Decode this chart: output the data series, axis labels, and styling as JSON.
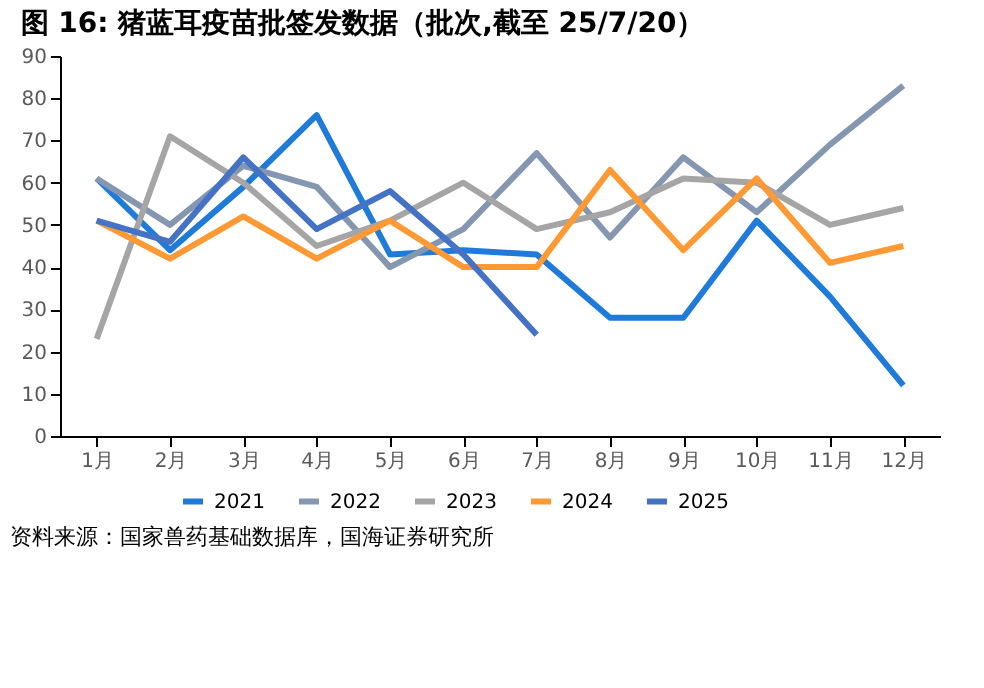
{
  "chart_data": {
    "type": "line",
    "title": "图 16: 猪蓝耳疫苗批签发数据（批次,截至 25/7/20）",
    "categories": [
      "1月",
      "2月",
      "3月",
      "4月",
      "5月",
      "6月",
      "7月",
      "8月",
      "9月",
      "10月",
      "11月",
      "12月"
    ],
    "series": [
      {
        "name": "2021",
        "color": "#1e7bd9",
        "values": [
          61,
          44,
          59,
          76,
          43,
          44,
          43,
          28,
          28,
          51,
          33,
          12
        ]
      },
      {
        "name": "2022",
        "color": "#8496b0",
        "values": [
          61,
          50,
          64,
          59,
          40,
          49,
          67,
          47,
          66,
          53,
          69,
          83
        ]
      },
      {
        "name": "2023",
        "color": "#a5a5a5",
        "values": [
          23,
          71,
          60,
          45,
          51,
          60,
          49,
          53,
          61,
          60,
          50,
          54
        ]
      },
      {
        "name": "2024",
        "color": "#ff9933",
        "values": [
          51,
          42,
          52,
          42,
          51,
          40,
          40,
          63,
          44,
          61,
          41,
          45
        ]
      },
      {
        "name": "2025",
        "color": "#4472c4",
        "values": [
          51,
          46,
          66,
          49,
          58,
          43,
          24,
          null,
          null,
          null,
          null,
          null
        ]
      }
    ],
    "ylim": [
      0,
      90
    ],
    "yticks": [
      0,
      10,
      20,
      30,
      40,
      50,
      60,
      70,
      80,
      90
    ],
    "grid": false,
    "legend": "bottom",
    "line_style": "solid",
    "marker": "none",
    "annotations": [
      "资料来源：国家兽药基础数据库，国海证券研究所"
    ]
  }
}
